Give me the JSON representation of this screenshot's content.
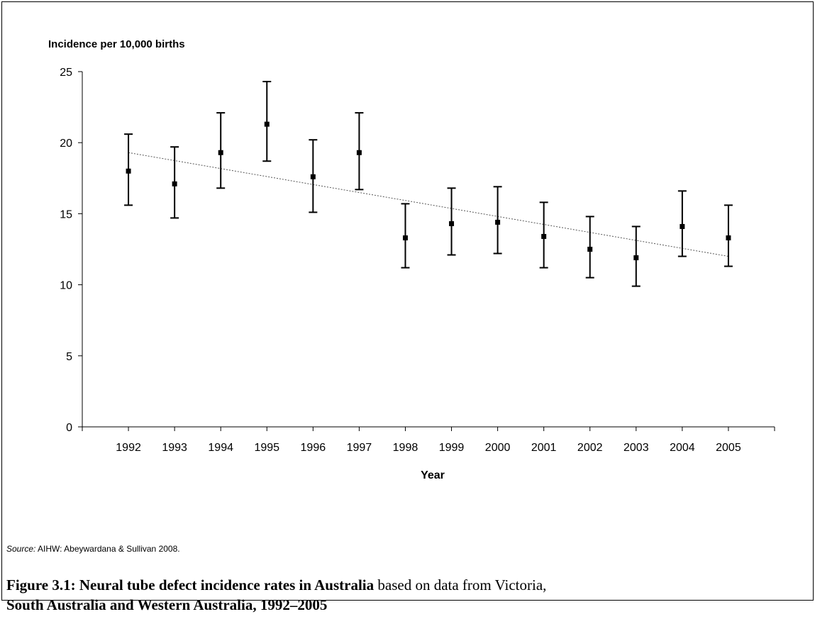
{
  "chart_data": {
    "type": "scatter",
    "ylabel": "Incidence  per 10,000 births",
    "xlabel": "Year",
    "ylim": [
      0,
      25
    ],
    "yticks": [
      "0",
      "5",
      "10",
      "15",
      "20",
      "25"
    ],
    "x": [
      "1992",
      "1993",
      "1994",
      "1995",
      "1996",
      "1997",
      "1998",
      "1999",
      "2000",
      "2001",
      "2002",
      "2003",
      "2004",
      "2005"
    ],
    "series": [
      {
        "values": [
          18.0,
          17.1,
          19.3,
          21.3,
          17.6,
          19.3,
          13.3,
          14.3,
          14.4,
          13.4,
          12.5,
          11.9,
          14.1,
          13.3
        ],
        "error_low": [
          15.6,
          14.7,
          16.8,
          18.7,
          15.1,
          16.7,
          11.2,
          12.1,
          12.2,
          11.2,
          10.5,
          9.9,
          12.0,
          11.3
        ],
        "error_high": [
          20.6,
          19.7,
          22.1,
          24.3,
          20.2,
          22.1,
          15.7,
          16.8,
          16.9,
          15.8,
          14.8,
          14.1,
          16.6,
          15.6
        ]
      }
    ],
    "trendline": {
      "start": 19.3,
      "end": 12.0
    },
    "grid": false,
    "legend": "none"
  },
  "source": {
    "label": "Source:",
    "text": " AIHW: Abeywardana & Sullivan 2008."
  },
  "caption": {
    "bold_part": "Figure 3.1: Neural tube defect incidence rates in Australia",
    "rest_line1": " based on data from Victoria,",
    "line2": "South Australia and Western Australia, 1992–2005"
  }
}
